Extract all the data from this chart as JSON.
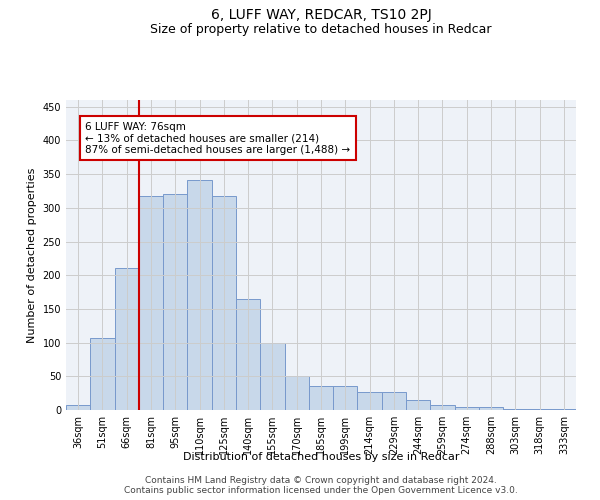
{
  "title": "6, LUFF WAY, REDCAR, TS10 2PJ",
  "subtitle": "Size of property relative to detached houses in Redcar",
  "xlabel": "Distribution of detached houses by size in Redcar",
  "ylabel": "Number of detached properties",
  "categories": [
    "36sqm",
    "51sqm",
    "66sqm",
    "81sqm",
    "95sqm",
    "110sqm",
    "125sqm",
    "140sqm",
    "155sqm",
    "170sqm",
    "185sqm",
    "199sqm",
    "214sqm",
    "229sqm",
    "244sqm",
    "259sqm",
    "274sqm",
    "288sqm",
    "303sqm",
    "318sqm",
    "333sqm"
  ],
  "values": [
    7,
    107,
    210,
    317,
    320,
    342,
    318,
    165,
    99,
    50,
    35,
    35,
    27,
    27,
    15,
    8,
    5,
    5,
    2,
    1,
    1
  ],
  "bar_color": "#c8d8ea",
  "bar_edge_color": "#7799cc",
  "vline_color": "#cc0000",
  "vline_pos": 2.5,
  "annotation_text": "6 LUFF WAY: 76sqm\n← 13% of detached houses are smaller (214)\n87% of semi-detached houses are larger (1,488) →",
  "annotation_box_facecolor": "white",
  "annotation_box_edgecolor": "#cc0000",
  "ylim": [
    0,
    460
  ],
  "yticks": [
    0,
    50,
    100,
    150,
    200,
    250,
    300,
    350,
    400,
    450
  ],
  "grid_color": "#cccccc",
  "bg_color": "#eef2f8",
  "footer_line1": "Contains HM Land Registry data © Crown copyright and database right 2024.",
  "footer_line2": "Contains public sector information licensed under the Open Government Licence v3.0.",
  "title_fontsize": 10,
  "subtitle_fontsize": 9,
  "axis_label_fontsize": 8,
  "tick_fontsize": 7,
  "annotation_fontsize": 7.5,
  "footer_fontsize": 6.5
}
